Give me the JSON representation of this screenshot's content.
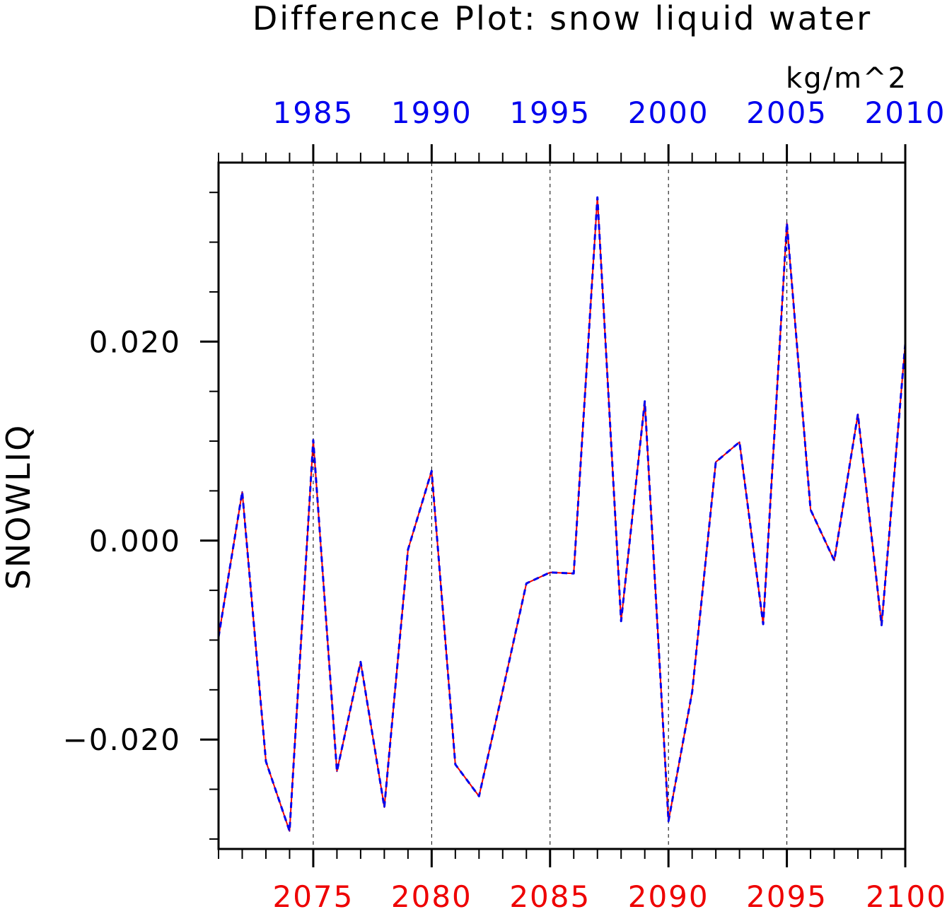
{
  "chart_data": {
    "type": "line",
    "title": "Difference Plot: snow liquid water",
    "units": "kg/m^2",
    "ylabel": "SNOWLIQ",
    "ylim": [
      -0.031,
      0.038
    ],
    "y_ticks": [
      -0.02,
      0.0,
      0.02
    ],
    "y_tick_labels": [
      "−0.020",
      "0.000",
      "0.020"
    ],
    "x_bottom": {
      "range": [
        2071,
        2100
      ],
      "ticks": [
        2075,
        2080,
        2085,
        2090,
        2095,
        2100
      ],
      "tick_labels": [
        "2075",
        "2080",
        "2085",
        "2090",
        "2095",
        "2100"
      ],
      "color": "#ee0000"
    },
    "x_top": {
      "range": [
        1981,
        2010
      ],
      "ticks": [
        1985,
        1990,
        1995,
        2000,
        2005,
        2010
      ],
      "tick_labels": [
        "1985",
        "1990",
        "1995",
        "2000",
        "2005",
        "2010"
      ],
      "color": "#0000ee"
    },
    "grid": "vertical dashed at major x ticks",
    "series": [
      {
        "color": "#ee0000",
        "style": "solid",
        "x": [
          2071,
          2072,
          2073,
          2074,
          2075,
          2076,
          2077,
          2078,
          2079,
          2080,
          2081,
          2082,
          2083,
          2084,
          2085,
          2086,
          2087,
          2088,
          2089,
          2090,
          2091,
          2092,
          2093,
          2094,
          2095,
          2096,
          2097,
          2098,
          2099,
          2100
        ],
        "values": [
          -0.0097,
          0.0049,
          -0.0222,
          -0.0292,
          0.0101,
          -0.0232,
          -0.0122,
          -0.0268,
          -0.0009,
          0.007,
          -0.0225,
          -0.0257,
          -0.0151,
          -0.0043,
          -0.0032,
          -0.0033,
          0.0345,
          -0.0081,
          0.014,
          -0.0282,
          -0.0152,
          0.0079,
          0.0099,
          -0.0084,
          0.0319,
          0.0031,
          -0.002,
          0.0127,
          -0.0085,
          0.0198
        ]
      },
      {
        "color": "#0000ee",
        "style": "dashed",
        "x": [
          2071,
          2072,
          2073,
          2074,
          2075,
          2076,
          2077,
          2078,
          2079,
          2080,
          2081,
          2082,
          2083,
          2084,
          2085,
          2086,
          2087,
          2088,
          2089,
          2090,
          2091,
          2092,
          2093,
          2094,
          2095,
          2096,
          2097,
          2098,
          2099,
          2100
        ],
        "values": [
          -0.0097,
          0.0049,
          -0.0222,
          -0.0292,
          0.0101,
          -0.0232,
          -0.0122,
          -0.0268,
          -0.0009,
          0.007,
          -0.0225,
          -0.0257,
          -0.0151,
          -0.0043,
          -0.0032,
          -0.0033,
          0.0345,
          -0.0081,
          0.014,
          -0.0282,
          -0.0152,
          0.0079,
          0.0099,
          -0.0084,
          0.0319,
          0.0031,
          -0.002,
          0.0127,
          -0.0085,
          0.0198
        ]
      }
    ]
  }
}
